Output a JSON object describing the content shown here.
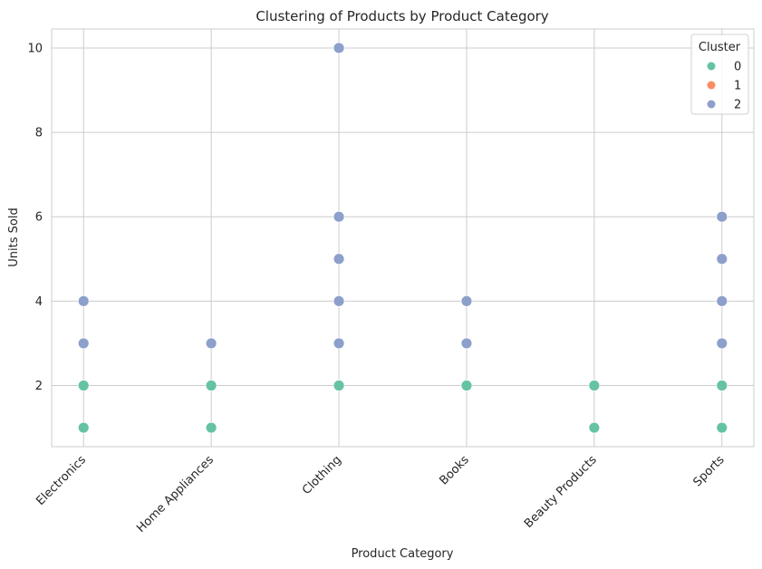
{
  "chart_data": {
    "type": "scatter",
    "title": "Clustering of Products by Product Category",
    "xlabel": "Product Category",
    "ylabel": "Units Sold",
    "categories": [
      "Electronics",
      "Home Appliances",
      "Clothing",
      "Books",
      "Beauty Products",
      "Sports"
    ],
    "ylim": [
      0.55,
      10.45
    ],
    "yticks": [
      2,
      4,
      6,
      8,
      10
    ],
    "grid": true,
    "legend": {
      "title": "Cluster",
      "position": "top-right",
      "entries": [
        "0",
        "1",
        "2"
      ]
    },
    "colors": {
      "0": "#66c2a5",
      "1": "#fc8d62",
      "2": "#8da0cb"
    },
    "series": [
      {
        "name": "0",
        "points": [
          {
            "x": "Electronics",
            "y": 1
          },
          {
            "x": "Electronics",
            "y": 2
          },
          {
            "x": "Home Appliances",
            "y": 1
          },
          {
            "x": "Home Appliances",
            "y": 2
          },
          {
            "x": "Clothing",
            "y": 2
          },
          {
            "x": "Books",
            "y": 2
          },
          {
            "x": "Beauty Products",
            "y": 1
          },
          {
            "x": "Beauty Products",
            "y": 2
          },
          {
            "x": "Sports",
            "y": 1
          },
          {
            "x": "Sports",
            "y": 2
          }
        ]
      },
      {
        "name": "1",
        "points": []
      },
      {
        "name": "2",
        "points": [
          {
            "x": "Electronics",
            "y": 3
          },
          {
            "x": "Electronics",
            "y": 4
          },
          {
            "x": "Home Appliances",
            "y": 3
          },
          {
            "x": "Clothing",
            "y": 3
          },
          {
            "x": "Clothing",
            "y": 4
          },
          {
            "x": "Clothing",
            "y": 5
          },
          {
            "x": "Clothing",
            "y": 6
          },
          {
            "x": "Clothing",
            "y": 10
          },
          {
            "x": "Books",
            "y": 3
          },
          {
            "x": "Books",
            "y": 4
          },
          {
            "x": "Sports",
            "y": 3
          },
          {
            "x": "Sports",
            "y": 4
          },
          {
            "x": "Sports",
            "y": 5
          },
          {
            "x": "Sports",
            "y": 6
          }
        ]
      }
    ]
  }
}
